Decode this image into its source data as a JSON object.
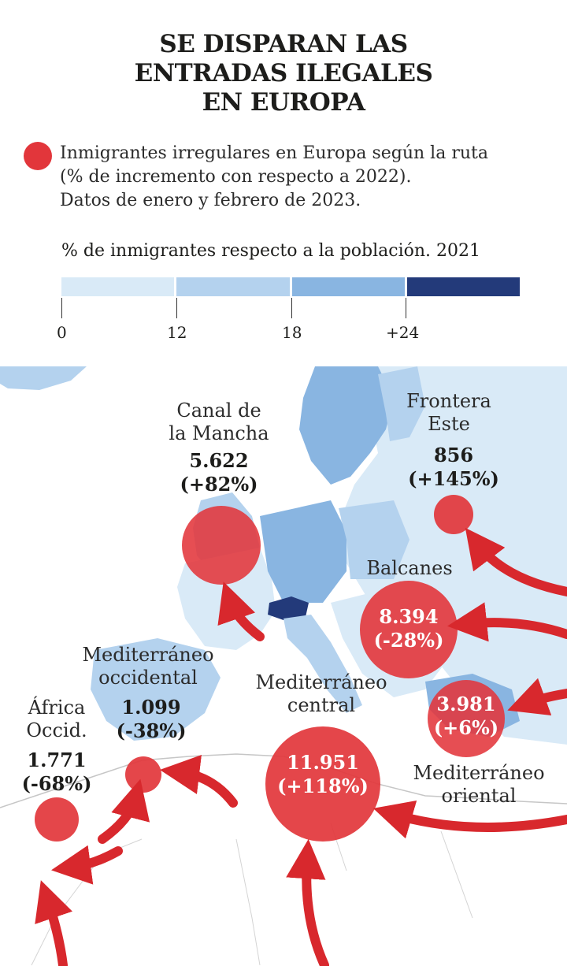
{
  "title": {
    "line1": "SE DISPARAN LAS",
    "line2": "ENTRADAS ILEGALES",
    "line3": "EN EUROPA"
  },
  "legend": {
    "line1": "Inmigrantes irregulares en Europa según la ruta",
    "line2": "(% de incremento con respecto a 2022).",
    "line3": "Datos de enero y febrero de 2023.",
    "dot_color": "#e2363b"
  },
  "scale": {
    "title": "% de inmigrantes respecto a la población. 2021",
    "ticks": [
      "0",
      "12",
      "18",
      "+24"
    ],
    "colors": [
      "#d9eaf7",
      "#b4d2ee",
      "#89b5e1",
      "#233a7a"
    ]
  },
  "routes": {
    "canal": {
      "name1": "Canal de",
      "name2": "la Mancha",
      "count": "5.622",
      "change": "(+82%)"
    },
    "este": {
      "name1": "Frontera",
      "name2": "Este",
      "count": "856",
      "change": "(+145%)"
    },
    "balcanes": {
      "name1": "Balcanes",
      "count": "8.394",
      "change": "(-28%)"
    },
    "med_occ": {
      "name1": "Mediterráneo",
      "name2": "occidental",
      "count": "1.099",
      "change": "(-38%)"
    },
    "med_central": {
      "name1": "Mediterráneo",
      "name2": "central",
      "count": "11.951",
      "change": "(+118%)"
    },
    "med_oriental": {
      "name1": "Mediterráneo",
      "name2": "oriental",
      "count": "3.981",
      "change": "(+6%)"
    },
    "africa": {
      "name1": "África",
      "name2": "Occid.",
      "count": "1.771",
      "change": "(-68%)"
    }
  },
  "map_colors": {
    "sea": "#ffffff",
    "light": "#d9eaf7",
    "mid": "#b4d2ee",
    "mid_dark": "#89b5e1",
    "dark": "#233a7a",
    "africa": "#ffffff",
    "circle": "#e2363b",
    "arrow": "#d8282d"
  }
}
